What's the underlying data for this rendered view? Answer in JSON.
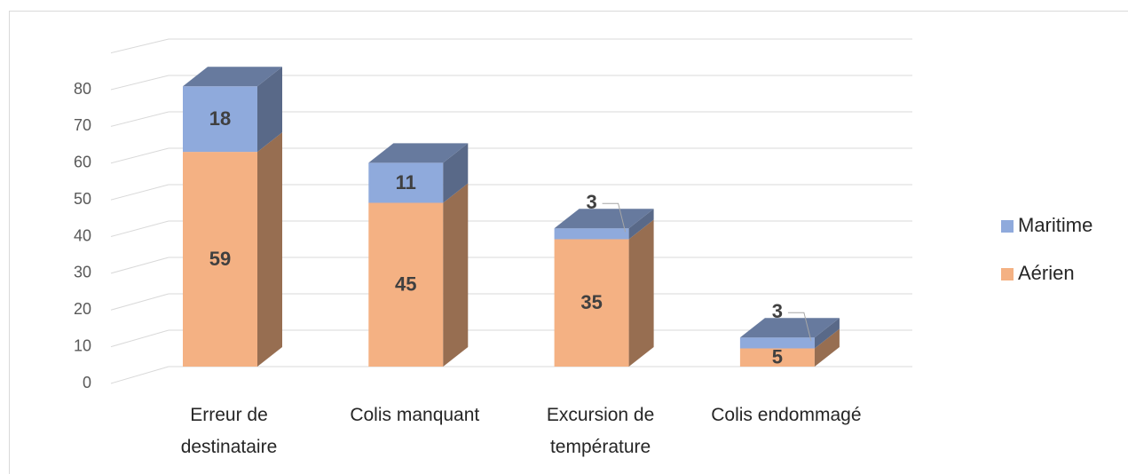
{
  "chart_data": {
    "type": "bar3d_stacked",
    "categories": [
      "Erreur de destinataire",
      "Colis manquant",
      "Excursion de température",
      "Colis endommagé"
    ],
    "series": [
      {
        "name": "Aérien",
        "color": "#f4b183",
        "values": [
          59,
          45,
          35,
          5
        ]
      },
      {
        "name": "Maritime",
        "color": "#8faadc",
        "values": [
          18,
          11,
          3,
          3
        ]
      }
    ],
    "ylim": [
      0,
      90
    ],
    "yticks": [
      0,
      10,
      20,
      30,
      40,
      50,
      60,
      70,
      80
    ],
    "grid": true,
    "legend": "right"
  }
}
